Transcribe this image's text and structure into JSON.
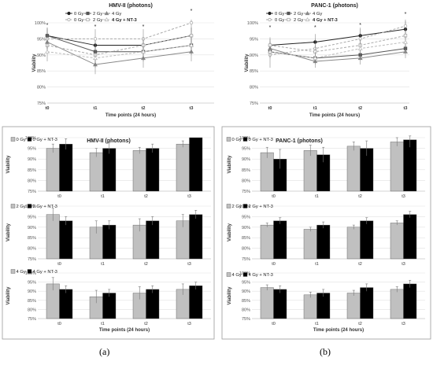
{
  "figure": {
    "panel_labels": [
      "(a)",
      "(b)"
    ]
  },
  "chart_data": [
    {
      "id": "line_a",
      "type": "line",
      "title": "HMV-II (photons)",
      "ylabel": "Viability",
      "xlabel": "Time points (24 hours)",
      "x": [
        "t0",
        "t1",
        "t2",
        "t3"
      ],
      "yticks": [
        "75%",
        "80%",
        "85%",
        "90%",
        "95%",
        "100%"
      ],
      "ylim": [
        75,
        100
      ],
      "grid": true,
      "legend": "top",
      "legend_labels": [
        "0 Gy",
        "2 Gy",
        "4 Gy",
        "0 Gy",
        "2 Gy",
        "4 Gy + NT-3"
      ],
      "annotation": "*",
      "series": [
        {
          "values": [
            96,
            93,
            93,
            96
          ],
          "err": [
            2.5,
            2.5,
            2.5,
            2.5
          ]
        },
        {
          "values": [
            96,
            91,
            91,
            93
          ],
          "err": [
            2.5,
            2.5,
            2.5,
            2.5
          ]
        },
        {
          "values": [
            94,
            87,
            89,
            91
          ],
          "err": [
            3,
            3,
            3,
            3
          ]
        },
        {
          "values": [
            95,
            95,
            95,
            100
          ],
          "err": [
            3,
            3,
            3,
            3
          ]
        },
        {
          "values": [
            93,
            90,
            93,
            96
          ],
          "err": [
            2.5,
            2.5,
            2.5,
            2.5
          ]
        },
        {
          "values": [
            91,
            89,
            91,
            93
          ],
          "err": [
            3,
            3,
            3,
            3
          ]
        }
      ]
    },
    {
      "id": "line_b",
      "type": "line",
      "title": "PANC-1 (photons)",
      "ylabel": "Viability",
      "xlabel": "Time points (24 hours)",
      "x": [
        "t0",
        "t1",
        "t2",
        "t3"
      ],
      "yticks": [
        "75%",
        "80%",
        "85%",
        "90%",
        "95%",
        "100%"
      ],
      "ylim": [
        75,
        100
      ],
      "grid": true,
      "legend": "top",
      "legend_labels": [
        "0 Gy",
        "2 Gy",
        "4 Gy",
        "0 Gy",
        "2 Gy",
        "4 Gy + NT-3"
      ],
      "annotation": "*",
      "series": [
        {
          "values": [
            93,
            94,
            96,
            98
          ],
          "err": [
            2.5,
            2.5,
            2.5,
            2.5
          ]
        },
        {
          "values": [
            91,
            89,
            90,
            92
          ],
          "err": [
            1.5,
            1.5,
            1.5,
            1.5
          ]
        },
        {
          "values": [
            92,
            88,
            89,
            91
          ],
          "err": [
            2,
            2,
            2,
            2
          ]
        },
        {
          "values": [
            90,
            92,
            95,
            99
          ],
          "err": [
            4,
            3,
            3,
            3
          ]
        },
        {
          "values": [
            93,
            91,
            93,
            96
          ],
          "err": [
            2,
            2,
            2,
            2
          ]
        },
        {
          "values": [
            91,
            89,
            92,
            94
          ],
          "err": [
            2,
            2,
            2,
            2
          ]
        }
      ]
    },
    {
      "id": "bar_a1",
      "type": "bar",
      "title": "HMV-II (photons)",
      "ylabel": "Viability",
      "xlabel": "",
      "categories": [
        "t0",
        "t1",
        "t2",
        "t3"
      ],
      "yticks": [
        "75%",
        "80%",
        "85%",
        "90%",
        "95%",
        "100%"
      ],
      "ylim": [
        75,
        100
      ],
      "grid": true,
      "legend_labels": [
        "0 Gy",
        "0 Gy + NT-3"
      ],
      "series": [
        {
          "values": [
            95,
            93,
            94,
            97
          ],
          "err": [
            2,
            2,
            1.5,
            1.5
          ]
        },
        {
          "values": [
            97,
            95,
            95,
            100
          ],
          "err": [
            2.5,
            2.5,
            2,
            0
          ]
        }
      ]
    },
    {
      "id": "bar_a2",
      "type": "bar",
      "title": "",
      "ylabel": "Viability",
      "xlabel": "",
      "categories": [
        "t0",
        "t1",
        "t2",
        "t3"
      ],
      "yticks": [
        "75%",
        "80%",
        "85%",
        "90%",
        "95%",
        "100%"
      ],
      "ylim": [
        75,
        100
      ],
      "grid": true,
      "legend_labels": [
        "2 Gy",
        "2 Gy + NT-3"
      ],
      "series": [
        {
          "values": [
            96,
            90,
            91,
            93
          ],
          "err": [
            3,
            3,
            3,
            3
          ]
        },
        {
          "values": [
            93,
            91,
            93,
            96
          ],
          "err": [
            2,
            2,
            2,
            2
          ]
        }
      ]
    },
    {
      "id": "bar_a3",
      "type": "bar",
      "title": "",
      "ylabel": "Viability",
      "xlabel": "Time points (24 hours)",
      "categories": [
        "t0",
        "t1",
        "t2",
        "t3"
      ],
      "yticks": [
        "75%",
        "80%",
        "85%",
        "90%",
        "95%",
        "100%"
      ],
      "ylim": [
        75,
        100
      ],
      "grid": true,
      "legend_labels": [
        "4 Gy",
        "4 Gy + NT-3"
      ],
      "series": [
        {
          "values": [
            94,
            87,
            89,
            91
          ],
          "err": [
            3.5,
            3.5,
            3.5,
            3
          ]
        },
        {
          "values": [
            91,
            89,
            91,
            93
          ],
          "err": [
            2,
            2,
            2,
            2
          ]
        }
      ]
    },
    {
      "id": "bar_b1",
      "type": "bar",
      "title": "PANC-1 (photons)",
      "ylabel": "Viability",
      "xlabel": "",
      "categories": [
        "t0",
        "t1",
        "t2",
        "t3"
      ],
      "yticks": [
        "75%",
        "80%",
        "85%",
        "90%",
        "95%",
        "100%"
      ],
      "ylim": [
        75,
        100
      ],
      "grid": true,
      "legend_labels": [
        "0 Gy",
        "0 Gy + NT-3"
      ],
      "series": [
        {
          "values": [
            93,
            94,
            96,
            98
          ],
          "err": [
            2.5,
            2.5,
            2,
            2
          ]
        },
        {
          "values": [
            90,
            92,
            95,
            99
          ],
          "err": [
            4.5,
            3.5,
            3.5,
            3.5
          ]
        }
      ]
    },
    {
      "id": "bar_b2",
      "type": "bar",
      "title": "",
      "ylabel": "Viability",
      "xlabel": "",
      "categories": [
        "t0",
        "t1",
        "t2",
        "t3"
      ],
      "yticks": [
        "75%",
        "80%",
        "85%",
        "90%",
        "95%",
        "100%"
      ],
      "ylim": [
        75,
        100
      ],
      "grid": true,
      "legend_labels": [
        "2 Gy",
        "2 Gy + NT-3"
      ],
      "series": [
        {
          "values": [
            91,
            89,
            90,
            92
          ],
          "err": [
            1,
            1,
            1,
            1
          ]
        },
        {
          "values": [
            93,
            91,
            93,
            96
          ],
          "err": [
            1.5,
            1.5,
            1.5,
            1.5
          ]
        }
      ]
    },
    {
      "id": "bar_b3",
      "type": "bar",
      "title": "",
      "ylabel": "Viability",
      "xlabel": "Time points (24 hours)",
      "categories": [
        "t0",
        "t1",
        "t2",
        "t3"
      ],
      "yticks": [
        "75%",
        "80%",
        "85%",
        "90%",
        "95%",
        "100%"
      ],
      "ylim": [
        75,
        100
      ],
      "grid": true,
      "legend_labels": [
        "4 Gy",
        "4 Gy + NT-3"
      ],
      "series": [
        {
          "values": [
            92,
            88,
            89,
            91
          ],
          "err": [
            1.5,
            1.5,
            1.5,
            1.5
          ]
        },
        {
          "values": [
            91,
            89,
            92,
            94
          ],
          "err": [
            2,
            2,
            2,
            2
          ]
        }
      ]
    }
  ]
}
